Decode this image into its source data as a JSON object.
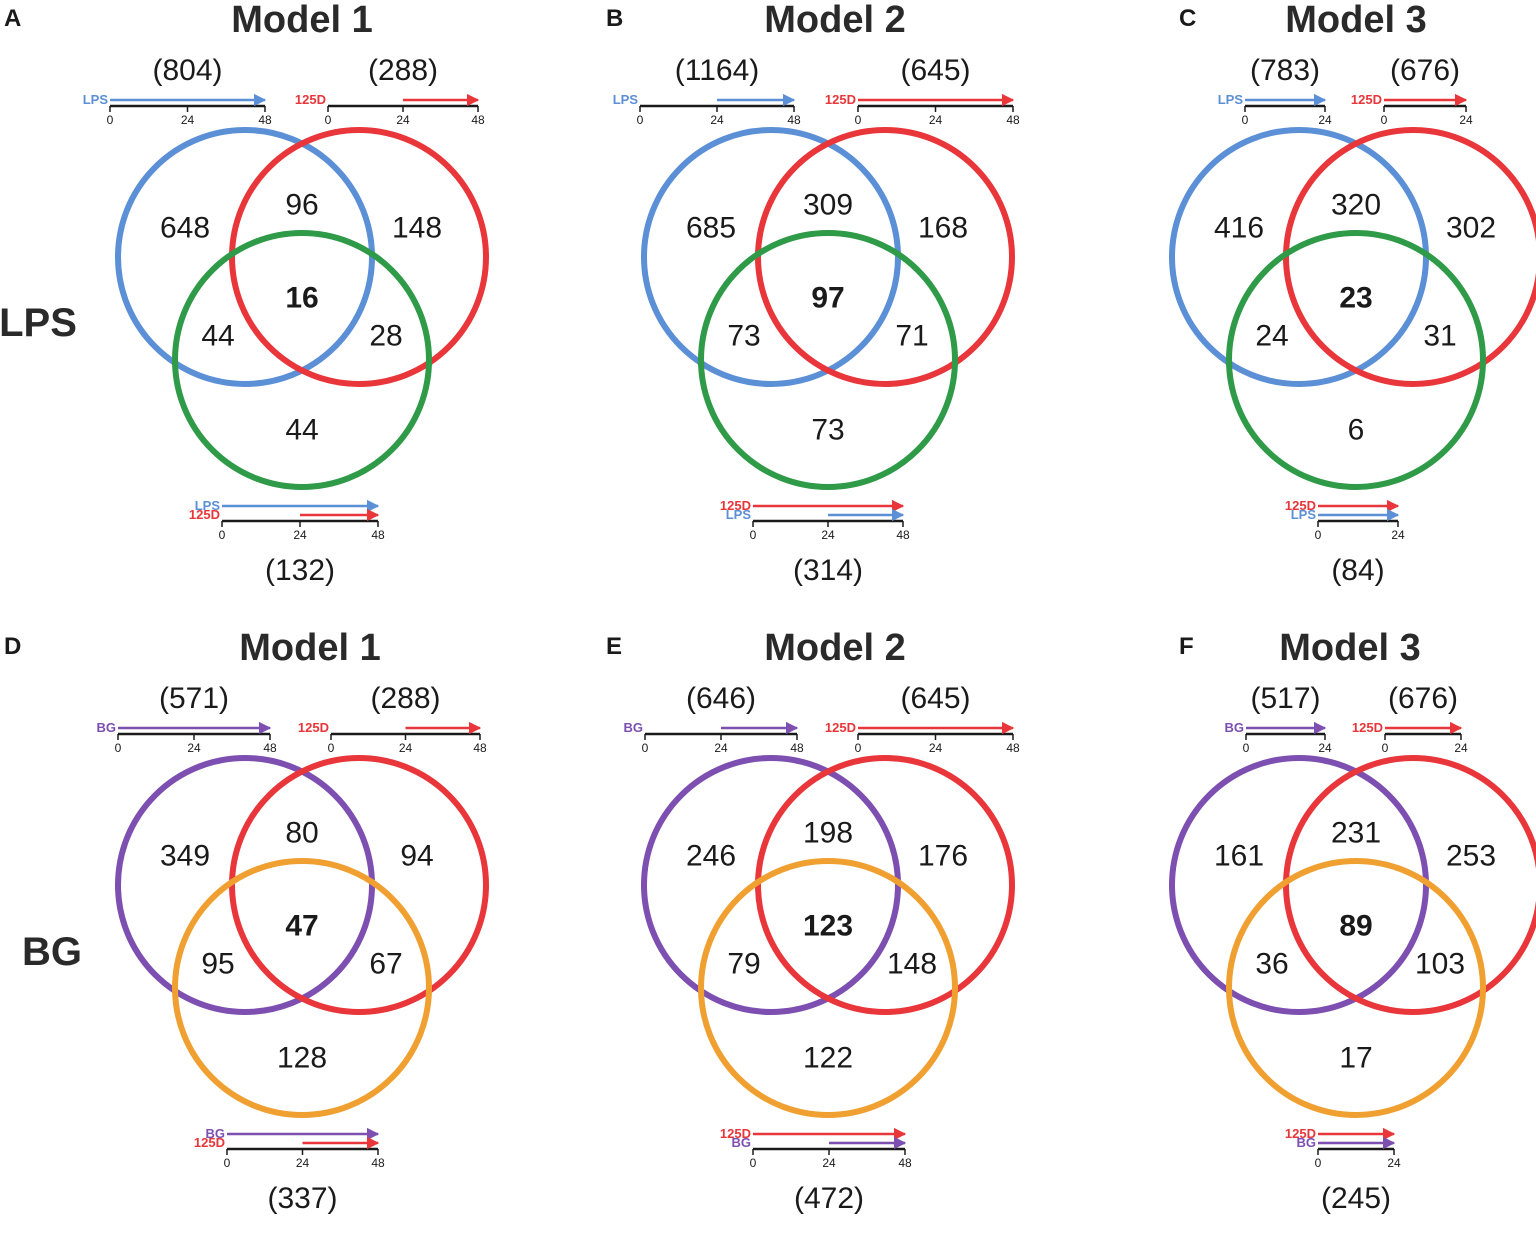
{
  "colors": {
    "LPS": "#5b8fd6",
    "BG": "#7c4fb0",
    "125D": "#e8363a",
    "green": "#2f9a48",
    "orange": "#f0a030",
    "axis": "#1a1a1a"
  },
  "row_labels": [
    "LPS",
    "BG"
  ],
  "panels": [
    {
      "letter": "A",
      "title": "Model 1",
      "stimulus": "LPS",
      "third_color": "green",
      "timeline_left": {
        "count": "(804)",
        "arrows": [
          {
            "label": "LPS",
            "color": "LPS",
            "start": 0,
            "end": 48
          }
        ],
        "max": 48,
        "ticks": [
          "0",
          "24",
          "48"
        ]
      },
      "timeline_right": {
        "count": "(288)",
        "arrows": [
          {
            "label": "125D",
            "color": "125D",
            "start": 24,
            "end": 48
          }
        ],
        "max": 48,
        "ticks": [
          "0",
          "24",
          "48"
        ]
      },
      "timeline_bottom": {
        "count": "(132)",
        "arrows": [
          {
            "label": "LPS",
            "color": "LPS",
            "start": 0,
            "end": 48
          },
          {
            "label": "125D",
            "color": "125D",
            "start": 24,
            "end": 48
          }
        ],
        "max": 48,
        "ticks": [
          "0",
          "24",
          "48"
        ]
      },
      "regions": {
        "only_a": "648",
        "ab": "96",
        "only_b": "148",
        "center": "16",
        "ac": "44",
        "bc": "28",
        "only_c": "44"
      }
    },
    {
      "letter": "B",
      "title": "Model 2",
      "stimulus": "LPS",
      "third_color": "green",
      "timeline_left": {
        "count": "(1164)",
        "arrows": [
          {
            "label": "LPS",
            "color": "LPS",
            "start": 24,
            "end": 48
          }
        ],
        "max": 48,
        "ticks": [
          "0",
          "24",
          "48"
        ]
      },
      "timeline_right": {
        "count": "(645)",
        "arrows": [
          {
            "label": "125D",
            "color": "125D",
            "start": 0,
            "end": 48
          }
        ],
        "max": 48,
        "ticks": [
          "0",
          "24",
          "48"
        ]
      },
      "timeline_bottom": {
        "count": "(314)",
        "arrows": [
          {
            "label": "125D",
            "color": "125D",
            "start": 0,
            "end": 48
          },
          {
            "label": "LPS",
            "color": "LPS",
            "start": 24,
            "end": 48
          }
        ],
        "max": 48,
        "ticks": [
          "0",
          "24",
          "48"
        ]
      },
      "regions": {
        "only_a": "685",
        "ab": "309",
        "only_b": "168",
        "center": "97",
        "ac": "73",
        "bc": "71",
        "only_c": "73"
      }
    },
    {
      "letter": "C",
      "title": "Model 3",
      "stimulus": "LPS",
      "third_color": "green",
      "timeline_left": {
        "count": "(783)",
        "arrows": [
          {
            "label": "LPS",
            "color": "LPS",
            "start": 0,
            "end": 24
          }
        ],
        "max": 24,
        "ticks": [
          "0",
          "24"
        ]
      },
      "timeline_right": {
        "count": "(676)",
        "arrows": [
          {
            "label": "125D",
            "color": "125D",
            "start": 0,
            "end": 24
          }
        ],
        "max": 24,
        "ticks": [
          "0",
          "24"
        ]
      },
      "timeline_bottom": {
        "count": "(84)",
        "arrows": [
          {
            "label": "125D",
            "color": "125D",
            "start": 0,
            "end": 24
          },
          {
            "label": "LPS",
            "color": "LPS",
            "start": 0,
            "end": 24
          }
        ],
        "max": 24,
        "ticks": [
          "0",
          "24"
        ]
      },
      "regions": {
        "only_a": "416",
        "ab": "320",
        "only_b": "302",
        "center": "23",
        "ac": "24",
        "bc": "31",
        "only_c": "6"
      }
    },
    {
      "letter": "D",
      "title": "Model 1",
      "stimulus": "BG",
      "third_color": "orange",
      "timeline_left": {
        "count": "(571)",
        "arrows": [
          {
            "label": "BG",
            "color": "BG",
            "start": 0,
            "end": 48
          }
        ],
        "max": 48,
        "ticks": [
          "0",
          "24",
          "48"
        ]
      },
      "timeline_right": {
        "count": "(288)",
        "arrows": [
          {
            "label": "125D",
            "color": "125D",
            "start": 24,
            "end": 48
          }
        ],
        "max": 48,
        "ticks": [
          "0",
          "24",
          "48"
        ]
      },
      "timeline_bottom": {
        "count": "(337)",
        "arrows": [
          {
            "label": "BG",
            "color": "BG",
            "start": 0,
            "end": 48
          },
          {
            "label": "125D",
            "color": "125D",
            "start": 24,
            "end": 48
          }
        ],
        "max": 48,
        "ticks": [
          "0",
          "24",
          "48"
        ]
      },
      "regions": {
        "only_a": "349",
        "ab": "80",
        "only_b": "94",
        "center": "47",
        "ac": "95",
        "bc": "67",
        "only_c": "128"
      }
    },
    {
      "letter": "E",
      "title": "Model 2",
      "stimulus": "BG",
      "third_color": "orange",
      "timeline_left": {
        "count": "(646)",
        "arrows": [
          {
            "label": "BG",
            "color": "BG",
            "start": 24,
            "end": 48
          }
        ],
        "max": 48,
        "ticks": [
          "0",
          "24",
          "48"
        ]
      },
      "timeline_right": {
        "count": "(645)",
        "arrows": [
          {
            "label": "125D",
            "color": "125D",
            "start": 0,
            "end": 48
          }
        ],
        "max": 48,
        "ticks": [
          "0",
          "24",
          "48"
        ]
      },
      "timeline_bottom": {
        "count": "(472)",
        "arrows": [
          {
            "label": "125D",
            "color": "125D",
            "start": 0,
            "end": 48
          },
          {
            "label": "BG",
            "color": "BG",
            "start": 24,
            "end": 48
          }
        ],
        "max": 48,
        "ticks": [
          "0",
          "24",
          "48"
        ]
      },
      "regions": {
        "only_a": "246",
        "ab": "198",
        "only_b": "176",
        "center": "123",
        "ac": "79",
        "bc": "148",
        "only_c": "122"
      }
    },
    {
      "letter": "F",
      "title": "Model 3",
      "stimulus": "BG",
      "third_color": "orange",
      "timeline_left": {
        "count": "(517)",
        "arrows": [
          {
            "label": "BG",
            "color": "BG",
            "start": 0,
            "end": 24
          }
        ],
        "max": 24,
        "ticks": [
          "0",
          "24"
        ]
      },
      "timeline_right": {
        "count": "(676)",
        "arrows": [
          {
            "label": "125D",
            "color": "125D",
            "start": 0,
            "end": 24
          }
        ],
        "max": 24,
        "ticks": [
          "0",
          "24"
        ]
      },
      "timeline_bottom": {
        "count": "(245)",
        "arrows": [
          {
            "label": "125D",
            "color": "125D",
            "start": 0,
            "end": 24
          },
          {
            "label": "BG",
            "color": "BG",
            "start": 0,
            "end": 24
          }
        ],
        "max": 24,
        "ticks": [
          "0",
          "24"
        ]
      },
      "regions": {
        "only_a": "161",
        "ab": "231",
        "only_b": "253",
        "center": "89",
        "ac": "36",
        "bc": "103",
        "only_c": "17"
      }
    }
  ]
}
